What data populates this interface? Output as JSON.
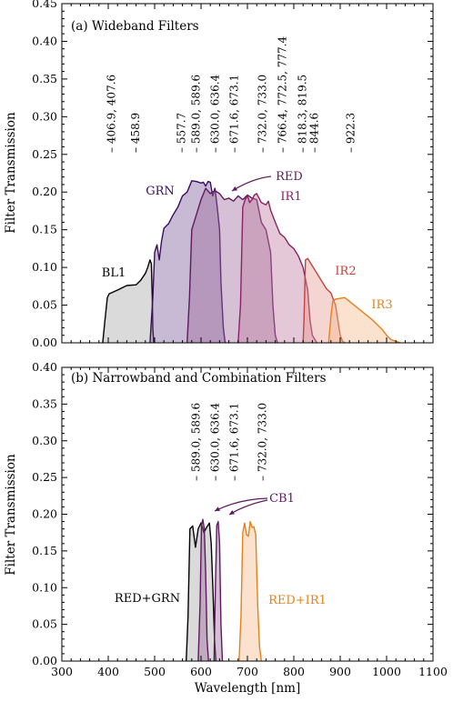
{
  "chart_data": [
    {
      "type": "area",
      "title": "(a) Wideband Filters",
      "xlabel": "",
      "ylabel": "Filter Transmission",
      "xlim": [
        300,
        1100
      ],
      "ylim": [
        0,
        0.45
      ],
      "xticks": [
        300,
        400,
        500,
        600,
        700,
        800,
        900,
        1000,
        1100
      ],
      "xtick_labels": [
        "",
        "",
        "",
        "",
        "",
        "",
        "",
        "",
        ""
      ],
      "yticks": [
        0,
        0.05,
        0.1,
        0.15,
        0.2,
        0.25,
        0.3,
        0.35,
        0.4,
        0.45
      ],
      "ytick_labels": [
        "0.00",
        "0.05",
        "0.10",
        "0.15",
        "0.20",
        "0.25",
        "0.30",
        "0.35",
        "0.40",
        "0.45"
      ],
      "grid": false,
      "emission_lines": [
        {
          "x": 406.9,
          "label": "406.9, 407.6"
        },
        {
          "x": 458.9,
          "label": "458.9"
        },
        {
          "x": 557.7,
          "label": "557.7"
        },
        {
          "x": 589.0,
          "label": "589.0, 589.6"
        },
        {
          "x": 630.0,
          "label": "630.0, 636.4"
        },
        {
          "x": 671.6,
          "label": "671.6, 673.1"
        },
        {
          "x": 732.0,
          "label": "732.0, 733.0"
        },
        {
          "x": 775,
          "label": "766.4, 772.5, 777.4"
        },
        {
          "x": 818.3,
          "label": "818.3, 819.5"
        },
        {
          "x": 844.6,
          "label": "844.6"
        },
        {
          "x": 922.3,
          "label": "922.3"
        }
      ],
      "series": [
        {
          "name": "BL1",
          "color": "#000000",
          "fill": "#a8a8a8",
          "x": [
            388,
            393,
            398,
            402,
            420,
            440,
            460,
            470,
            480,
            485,
            490,
            493,
            495,
            496,
            498
          ],
          "y": [
            0.0,
            0.03,
            0.06,
            0.065,
            0.07,
            0.076,
            0.077,
            0.083,
            0.092,
            0.1,
            0.11,
            0.105,
            0.06,
            0.02,
            0.0
          ]
        },
        {
          "name": "GRN",
          "color": "#3a0d5e",
          "fill": "#7b5a99",
          "x": [
            490,
            496,
            500,
            505,
            510,
            515,
            520,
            530,
            540,
            550,
            560,
            570,
            580,
            590,
            600,
            605,
            610,
            615,
            620,
            625,
            630,
            635,
            640,
            643,
            648,
            652
          ],
          "y": [
            0.0,
            0.06,
            0.12,
            0.13,
            0.11,
            0.135,
            0.152,
            0.158,
            0.17,
            0.18,
            0.195,
            0.2,
            0.215,
            0.214,
            0.212,
            0.213,
            0.208,
            0.214,
            0.213,
            0.195,
            0.205,
            0.18,
            0.15,
            0.08,
            0.02,
            0.0
          ]
        },
        {
          "name": "RED",
          "color": "#5e1a5e",
          "fill": "#9c6a9c",
          "x": [
            570,
            575,
            580,
            590,
            600,
            610,
            620,
            630,
            640,
            650,
            660,
            670,
            680,
            690,
            700,
            710,
            720,
            730,
            740,
            750,
            755,
            760,
            765
          ],
          "y": [
            0.0,
            0.06,
            0.15,
            0.17,
            0.19,
            0.205,
            0.198,
            0.202,
            0.198,
            0.19,
            0.192,
            0.188,
            0.195,
            0.19,
            0.196,
            0.192,
            0.19,
            0.16,
            0.15,
            0.12,
            0.05,
            0.01,
            0.0
          ]
        },
        {
          "name": "IR1",
          "color": "#8c2261",
          "fill": "#c07ba2",
          "x": [
            680,
            685,
            690,
            695,
            700,
            705,
            710,
            715,
            720,
            730,
            740,
            745,
            750,
            760,
            770,
            780,
            790,
            800,
            810,
            820,
            830,
            835,
            840,
            845,
            850
          ],
          "y": [
            0.0,
            0.05,
            0.18,
            0.19,
            0.195,
            0.186,
            0.19,
            0.196,
            0.198,
            0.186,
            0.183,
            0.188,
            0.176,
            0.16,
            0.145,
            0.14,
            0.13,
            0.125,
            0.115,
            0.1,
            0.07,
            0.03,
            0.01,
            0.005,
            0.0
          ]
        },
        {
          "name": "IR2",
          "color": "#c2453c",
          "fill": "#e49a91",
          "x": [
            820,
            822,
            825,
            830,
            840,
            850,
            860,
            870,
            880,
            890,
            895,
            900,
            905,
            910
          ],
          "y": [
            0.0,
            0.03,
            0.11,
            0.112,
            0.102,
            0.092,
            0.082,
            0.072,
            0.066,
            0.05,
            0.03,
            0.01,
            0.002,
            0.0
          ]
        },
        {
          "name": "IR3",
          "color": "#e6801e",
          "fill": "#f4b98a",
          "x": [
            875,
            880,
            884,
            890,
            900,
            910,
            920,
            930,
            950,
            970,
            990,
            1000,
            1010,
            1020,
            1030
          ],
          "y": [
            0.0,
            0.035,
            0.055,
            0.058,
            0.059,
            0.06,
            0.055,
            0.05,
            0.04,
            0.03,
            0.018,
            0.01,
            0.004,
            0.002,
            0.0
          ]
        }
      ],
      "annotations": [
        {
          "text": "BL1",
          "color": "#000000"
        },
        {
          "text": "GRN",
          "color": "#3a0d5e"
        },
        {
          "text": "RED",
          "color": "#5e1a5e",
          "arrow": true
        },
        {
          "text": "IR1",
          "color": "#8c2261"
        },
        {
          "text": "IR2",
          "color": "#c2453c"
        },
        {
          "text": "IR3",
          "color": "#e6801e"
        }
      ]
    },
    {
      "type": "area",
      "title": "(b) Narrowband and Combination Filters",
      "xlabel": "Wavelength [nm]",
      "ylabel": "Filter Transmission",
      "xlim": [
        300,
        1100
      ],
      "ylim": [
        0,
        0.4
      ],
      "xticks": [
        300,
        400,
        500,
        600,
        700,
        800,
        900,
        1000,
        1100
      ],
      "xtick_labels": [
        "300",
        "400",
        "500",
        "600",
        "700",
        "800",
        "900",
        "1000",
        "1100"
      ],
      "yticks": [
        0,
        0.05,
        0.1,
        0.15,
        0.2,
        0.25,
        0.3,
        0.35,
        0.4
      ],
      "ytick_labels": [
        "0.00",
        "0.05",
        "0.10",
        "0.15",
        "0.20",
        "0.25",
        "0.30",
        "0.35",
        "0.40"
      ],
      "grid": false,
      "emission_lines": [
        {
          "x": 589.0,
          "label": "589.0, 589.6"
        },
        {
          "x": 630.0,
          "label": "630.0, 636.4"
        },
        {
          "x": 671.6,
          "label": "671.6, 673.1"
        },
        {
          "x": 732.0,
          "label": "732.0, 733.0"
        }
      ],
      "series": [
        {
          "name": "RED+GRN",
          "color": "#000000",
          "fill": "#a8a8a8",
          "x": [
            568,
            572,
            576,
            582,
            588,
            594,
            600,
            606,
            612,
            618,
            622,
            626,
            629,
            632
          ],
          "y": [
            0.0,
            0.06,
            0.18,
            0.184,
            0.155,
            0.18,
            0.188,
            0.175,
            0.182,
            0.188,
            0.16,
            0.09,
            0.03,
            0.0
          ]
        },
        {
          "name": "CB1",
          "color": "#5e1a5e",
          "fill": "#9c6a9c",
          "x": [
            594,
            598,
            601,
            604,
            607,
            610,
            613,
            616
          ],
          "y": [
            0.0,
            0.08,
            0.185,
            0.193,
            0.18,
            0.12,
            0.03,
            0.0
          ]
        },
        {
          "name": "CB1",
          "color": "#5e1a5e",
          "fill": "#9c6a9c",
          "x": [
            628,
            631,
            634,
            637,
            640,
            643,
            646
          ],
          "y": [
            0.0,
            0.1,
            0.185,
            0.19,
            0.16,
            0.05,
            0.0
          ]
        },
        {
          "name": "RED+IR1",
          "color": "#e6801e",
          "fill": "#f4b98a",
          "x": [
            682,
            686,
            690,
            694,
            698,
            702,
            706,
            710,
            714,
            718,
            722,
            726,
            730
          ],
          "y": [
            0.0,
            0.06,
            0.175,
            0.188,
            0.172,
            0.17,
            0.19,
            0.182,
            0.183,
            0.172,
            0.08,
            0.02,
            0.0
          ]
        }
      ],
      "annotations": [
        {
          "text": "RED+GRN",
          "color": "#000000"
        },
        {
          "text": "CB1",
          "color": "#5e1a5e",
          "arrow": true
        },
        {
          "text": "RED+IR1",
          "color": "#e6801e"
        }
      ]
    }
  ]
}
